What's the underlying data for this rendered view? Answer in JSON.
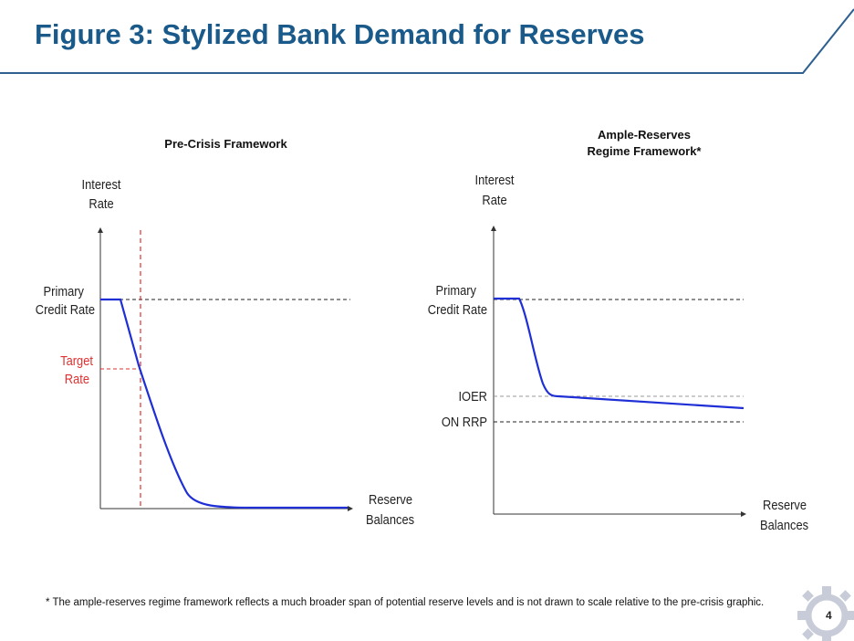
{
  "header": {
    "title": "Figure 3: Stylized Bank Demand for Reserves"
  },
  "left_chart": {
    "title": "Pre-Crisis Framework",
    "y_axis_label": [
      "Interest",
      "Rate"
    ],
    "x_axis_label": [
      "Reserve",
      "Balances"
    ],
    "primary_label": [
      "Primary",
      "Credit Rate"
    ],
    "target_label": [
      "Target",
      "Rate"
    ]
  },
  "right_chart": {
    "title": [
      "Ample-Reserves",
      "Regime Framework*"
    ],
    "y_axis_label": [
      "Interest",
      "Rate"
    ],
    "x_axis_label": [
      "Reserve",
      "Balances"
    ],
    "primary_label": [
      "Primary",
      "Credit Rate"
    ],
    "ioer_label": "IOER",
    "onrrp_label": "ON RRP"
  },
  "footnote": "* The ample-reserves regime framework reflects a much broader span of potential reserve levels and is not drawn to scale relative to the pre-crisis graphic.",
  "page_number": "4",
  "colors": {
    "title": "#1a5a8a",
    "curve": "#1f2fd6",
    "target": "#e03030"
  }
}
